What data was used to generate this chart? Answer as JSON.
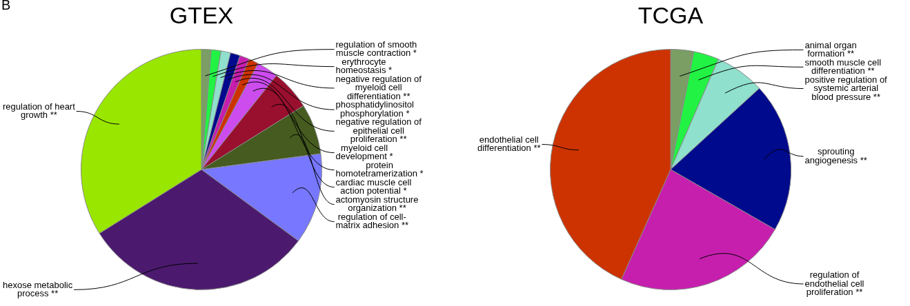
{
  "chart_data": [
    {
      "type": "pie",
      "title": "GTEX",
      "annotations": [
        "B"
      ],
      "categories": [
        "regulation of smooth\nmuscle contraction *",
        "erythrocyte\nhomeostasis *",
        "negative regulation of\nmyeloid cell\ndifferentiation **",
        "phosphatidylinositol\nphosphorylation *",
        "negative regulation of\nepithelial cell\nproliferation **",
        "myeloid cell\ndevelopment *",
        "protein\nhomotetramerization *",
        "cardiac muscle cell\naction potential *",
        "actomyosin structure\norganization **",
        "regulation of cell-\nmatrix adhesion **",
        "hexose metabolic\nprocess **",
        "regulation of heart\ngrowth **"
      ],
      "values": [
        1.3,
        1.3,
        1.3,
        1.3,
        1.3,
        1.3,
        2.9,
        5.4,
        6.8,
        12.2,
        31.0,
        33.9
      ],
      "colors": [
        "#7a9e64",
        "#22f244",
        "#8fe0cc",
        "#000a8c",
        "#c61fae",
        "#cc3300",
        "#cc4cee",
        "#990f2e",
        "#455b1f",
        "#7777ff",
        "#4b1a6e",
        "#99e600"
      ]
    },
    {
      "type": "pie",
      "title": "TCGA",
      "categories": [
        "animal organ\nformation **",
        "smooth muscle cell\ndifferentiation **",
        "positive regulation of\nsystemic arterial\nblood pressure **",
        "sprouting\nangiogenesis **",
        "regulation of\nendothelial cell\nproliferation **",
        "endothelial cell\ndifferentiation **"
      ],
      "values": [
        3.1,
        3.4,
        6.7,
        20.1,
        23.4,
        43.3
      ],
      "colors": [
        "#7a9e64",
        "#22f244",
        "#8fe0cc",
        "#000a8c",
        "#c61fae",
        "#cc3300"
      ]
    }
  ]
}
